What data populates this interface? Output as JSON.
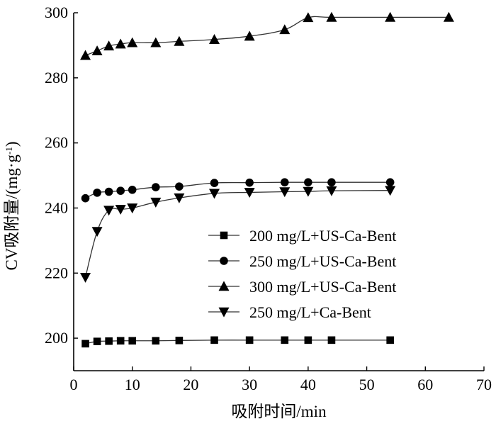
{
  "chart_data": {
    "type": "line",
    "xlabel": "吸附时间/min",
    "ylabel": "CV吸附量/(mg·g",
    "ylabel_sup": "-1",
    "ylabel_close": ")",
    "xlim": [
      0,
      70
    ],
    "ylim": [
      190,
      300
    ],
    "xticks": [
      0,
      10,
      20,
      30,
      40,
      50,
      60,
      70
    ],
    "yticks": [
      200,
      220,
      240,
      260,
      280,
      300
    ],
    "grid": false,
    "legend_position": "lower-right",
    "series": [
      {
        "name": "200 mg/L+US-Ca-Bent",
        "marker": "square",
        "x": [
          2,
          4,
          6,
          8,
          10,
          14,
          18,
          24,
          30,
          36,
          40,
          44,
          54
        ],
        "y": [
          198.3,
          199.0,
          199.1,
          199.2,
          199.2,
          199.2,
          199.3,
          199.4,
          199.4,
          199.4,
          199.4,
          199.4,
          199.4
        ]
      },
      {
        "name": "250 mg/L+US-Ca-Bent",
        "marker": "circle",
        "x": [
          2,
          4,
          6,
          8,
          10,
          14,
          18,
          24,
          30,
          36,
          40,
          44,
          54
        ],
        "y": [
          243.0,
          244.7,
          245.0,
          245.3,
          245.6,
          246.4,
          246.6,
          247.7,
          247.8,
          247.9,
          247.9,
          247.9,
          247.9
        ]
      },
      {
        "name": "300 mg/L+US-Ca-Bent",
        "marker": "triangle-up",
        "x": [
          2,
          4,
          6,
          8,
          10,
          14,
          18,
          24,
          30,
          36,
          40,
          44,
          54,
          64
        ],
        "y": [
          286.9,
          288.3,
          289.8,
          290.4,
          290.8,
          290.8,
          291.2,
          291.8,
          292.8,
          294.8,
          298.5,
          298.6,
          298.6,
          298.6
        ]
      },
      {
        "name": "250 mg/L+Ca-Bent",
        "marker": "triangle-down",
        "x": [
          2,
          4,
          6,
          8,
          10,
          14,
          18,
          24,
          30,
          36,
          40,
          44,
          54
        ],
        "y": [
          218.7,
          232.8,
          239.3,
          239.6,
          240.0,
          241.8,
          243.1,
          244.5,
          244.8,
          245.0,
          245.1,
          245.3,
          245.4
        ]
      }
    ]
  }
}
